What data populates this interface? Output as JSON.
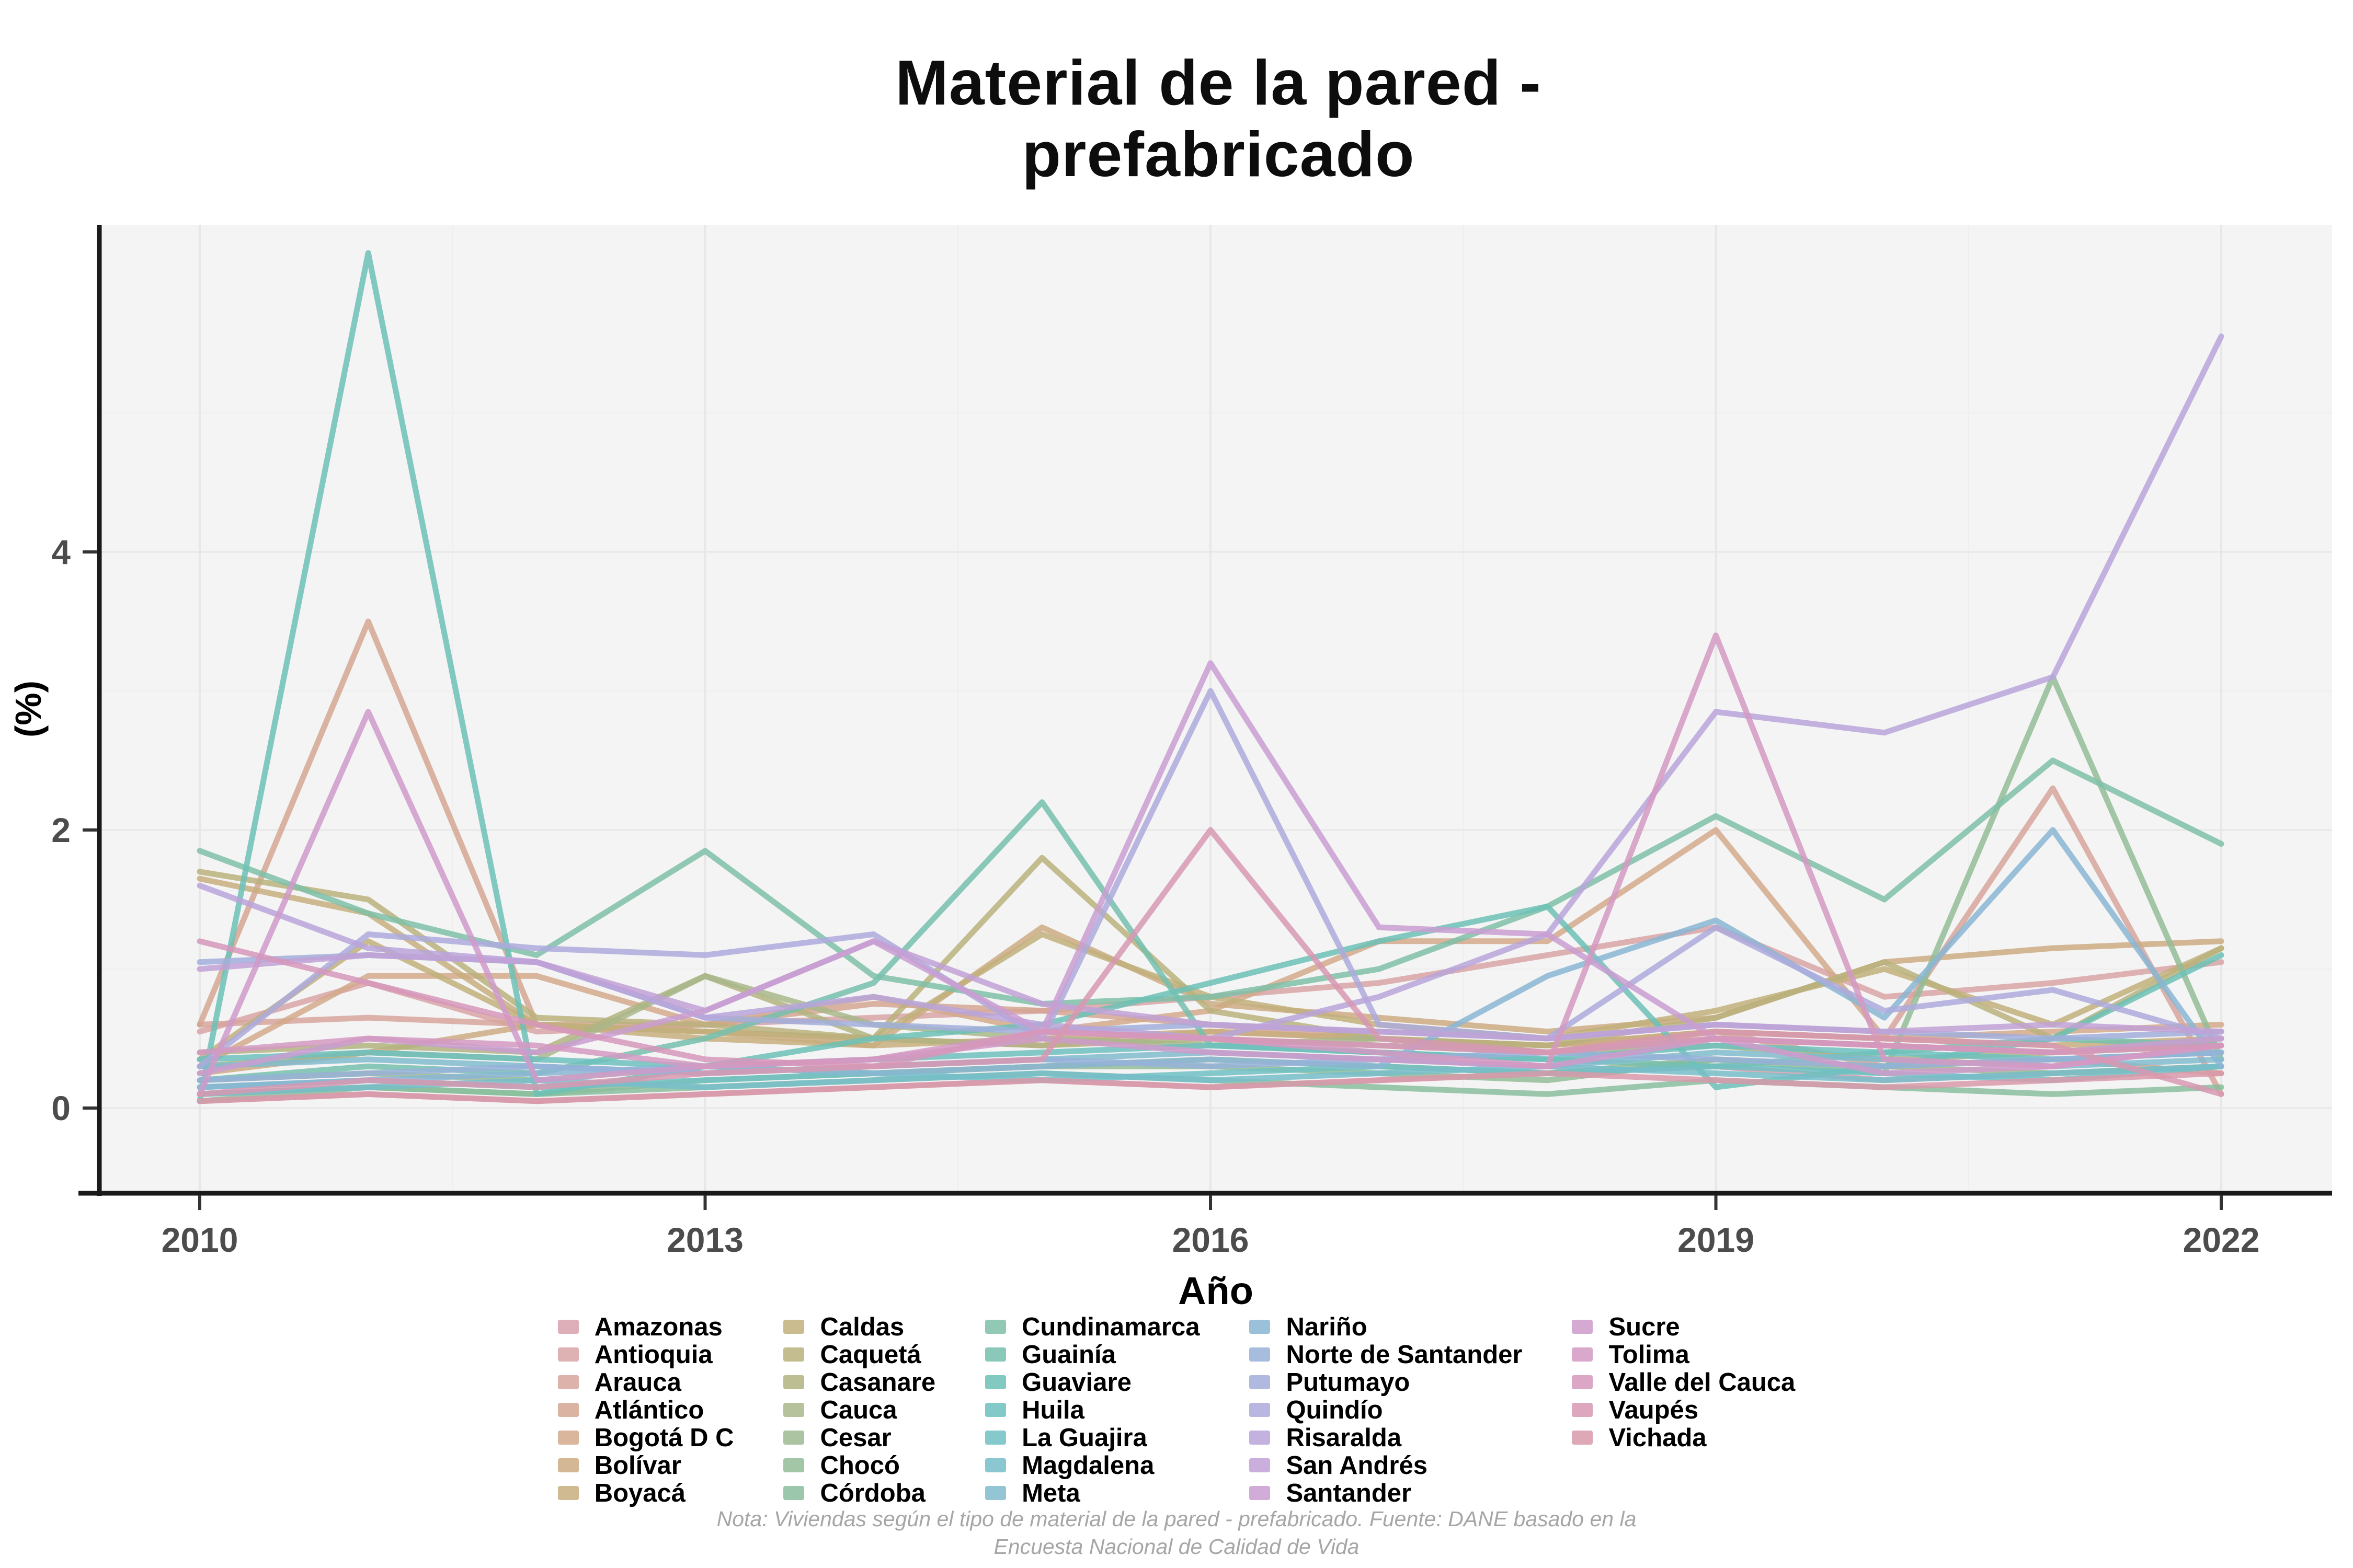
{
  "title": {
    "line1": "Material de la pared -",
    "line2": "prefabricado"
  },
  "axes": {
    "x_label": "Año",
    "y_label": "(%)",
    "x_ticks": [
      2010,
      2013,
      2016,
      2019,
      2022
    ],
    "y_ticks": [
      0,
      2,
      4
    ]
  },
  "note": {
    "line1": "Nota: Viviendas según el tipo de material de la pared - prefabricado. Fuente: DANE basado en la",
    "line2": "Encuesta Nacional de Calidad de Vida"
  },
  "style_colors": {
    "panel_background": "#f4f4f4",
    "grid_major": "#e7e7e7",
    "grid_minor": "#eeeeee",
    "axis_line": "#1a1a1a",
    "tick_label": "#4c4c4c"
  },
  "chart_data": {
    "type": "line",
    "title": "Material de la pared - prefabricado",
    "xlabel": "Año",
    "ylabel": "(%)",
    "x": [
      2010,
      2011,
      2012,
      2013,
      2014,
      2015,
      2016,
      2017,
      2018,
      2019,
      2020,
      2021,
      2022
    ],
    "xlim": [
      2010,
      2022
    ],
    "ylim": [
      0,
      6.2
    ],
    "grid": true,
    "legend_position": "bottom",
    "series": [
      {
        "name": "Amazonas",
        "color": "#d8a0ad",
        "values": [
          0.05,
          0.1,
          0.05,
          0.1,
          0.15,
          0.2,
          0.15,
          0.2,
          0.25,
          0.3,
          0.2,
          0.25,
          0.3
        ]
      },
      {
        "name": "Antioquia",
        "color": "#d8a3a4",
        "values": [
          0.55,
          0.9,
          0.55,
          0.6,
          0.65,
          0.7,
          0.8,
          0.9,
          1.1,
          1.3,
          0.8,
          0.9,
          1.05
        ]
      },
      {
        "name": "Arauca",
        "color": "#d6a49c",
        "values": [
          0.6,
          0.65,
          0.6,
          0.55,
          0.5,
          0.45,
          0.55,
          0.5,
          0.45,
          0.55,
          0.5,
          2.3,
          0.1
        ]
      },
      {
        "name": "Atlántico",
        "color": "#d5a693",
        "values": [
          0.6,
          3.5,
          0.6,
          0.6,
          0.75,
          0.7,
          0.6,
          0.5,
          0.4,
          0.55,
          0.3,
          0.35,
          0.25
        ]
      },
      {
        "name": "Bogotá D C",
        "color": "#d2a98b",
        "values": [
          0.3,
          0.95,
          0.95,
          0.6,
          0.8,
          0.55,
          0.7,
          1.2,
          1.2,
          2.0,
          0.5,
          0.55,
          0.6
        ]
      },
      {
        "name": "Bolívar",
        "color": "#cdab83",
        "values": [
          0.25,
          0.4,
          0.6,
          0.55,
          0.45,
          1.3,
          0.75,
          0.65,
          0.55,
          0.65,
          1.05,
          1.15,
          1.2
        ]
      },
      {
        "name": "Boyacá",
        "color": "#c8ae7e",
        "values": [
          1.65,
          1.4,
          0.6,
          0.5,
          0.45,
          0.5,
          0.55,
          0.5,
          0.45,
          0.55,
          0.5,
          0.45,
          0.5
        ]
      },
      {
        "name": "Caldas",
        "color": "#c1b07b",
        "values": [
          0.35,
          1.2,
          0.6,
          0.55,
          0.5,
          1.25,
          0.8,
          0.6,
          0.5,
          0.7,
          1.0,
          0.6,
          1.15
        ]
      },
      {
        "name": "Caquetá",
        "color": "#bab27d",
        "values": [
          1.7,
          1.5,
          0.65,
          0.6,
          0.5,
          1.8,
          0.7,
          0.5,
          0.45,
          0.65,
          1.05,
          0.5,
          1.15
        ]
      },
      {
        "name": "Casanare",
        "color": "#b1b480",
        "values": [
          0.4,
          0.45,
          0.4,
          0.95,
          0.5,
          0.45,
          0.5,
          0.45,
          0.4,
          0.5,
          0.45,
          0.4,
          0.45
        ]
      },
      {
        "name": "Cauca",
        "color": "#a8b789",
        "values": [
          0.3,
          0.4,
          0.35,
          0.95,
          0.6,
          0.5,
          0.45,
          0.5,
          0.4,
          0.45,
          0.35,
          0.4,
          0.5
        ]
      },
      {
        "name": "Cesar",
        "color": "#9dba90",
        "values": [
          0.2,
          0.25,
          0.2,
          0.3,
          0.25,
          0.3,
          0.35,
          0.3,
          0.25,
          0.35,
          0.3,
          0.25,
          0.3
        ]
      },
      {
        "name": "Chocó",
        "color": "#93bc96",
        "values": [
          0.05,
          0.15,
          0.1,
          0.2,
          0.25,
          0.3,
          0.3,
          0.25,
          0.2,
          0.35,
          0.25,
          3.1,
          0.35
        ]
      },
      {
        "name": "Córdoba",
        "color": "#89be9e",
        "values": [
          0.1,
          0.15,
          0.1,
          0.15,
          0.2,
          0.25,
          0.2,
          0.15,
          0.1,
          0.2,
          0.15,
          0.1,
          0.15
        ]
      },
      {
        "name": "Cundinamarca",
        "color": "#7fbfa7",
        "values": [
          1.85,
          1.4,
          1.1,
          1.85,
          0.95,
          0.75,
          0.8,
          1.0,
          1.45,
          2.1,
          1.5,
          2.5,
          1.9
        ]
      },
      {
        "name": "Guainía",
        "color": "#76c0ae",
        "values": [
          0.2,
          0.3,
          0.25,
          0.5,
          0.9,
          2.2,
          0.45,
          0.4,
          0.35,
          0.3,
          0.4,
          0.5,
          0.45
        ]
      },
      {
        "name": "Guaviare",
        "color": "#6cc1b6",
        "values": [
          0.05,
          6.15,
          0.1,
          0.3,
          0.5,
          0.6,
          0.9,
          1.2,
          1.45,
          0.15,
          0.3,
          0.5,
          1.1
        ]
      },
      {
        "name": "Huila",
        "color": "#6dc0bd",
        "values": [
          0.35,
          0.4,
          0.35,
          0.3,
          0.35,
          0.4,
          0.45,
          0.4,
          0.35,
          0.45,
          0.4,
          0.35,
          0.4
        ]
      },
      {
        "name": "La Guajira",
        "color": "#70bfc3",
        "values": [
          0.15,
          0.2,
          0.15,
          0.2,
          0.25,
          0.2,
          0.25,
          0.3,
          0.25,
          0.3,
          0.25,
          0.2,
          0.3
        ]
      },
      {
        "name": "Magdalena",
        "color": "#77bdc9",
        "values": [
          0.1,
          0.15,
          0.2,
          0.15,
          0.2,
          0.25,
          0.2,
          0.25,
          0.3,
          0.25,
          0.2,
          0.25,
          0.3
        ]
      },
      {
        "name": "Meta",
        "color": "#80bbce",
        "values": [
          0.3,
          0.35,
          0.3,
          0.25,
          0.3,
          0.35,
          0.4,
          0.35,
          0.3,
          0.4,
          0.35,
          0.3,
          0.35
        ]
      },
      {
        "name": "Nariño",
        "color": "#8ab6d3",
        "values": [
          0.15,
          0.2,
          0.25,
          0.3,
          0.25,
          0.3,
          0.35,
          0.3,
          0.95,
          1.35,
          0.65,
          2.0,
          0.3
        ]
      },
      {
        "name": "Norte de Santander",
        "color": "#96b2d8",
        "values": [
          0.2,
          0.25,
          0.3,
          0.25,
          0.3,
          0.35,
          0.3,
          0.35,
          0.4,
          0.35,
          0.3,
          0.35,
          0.4
        ]
      },
      {
        "name": "Putumayo",
        "color": "#a2aedb",
        "values": [
          1.05,
          1.1,
          1.05,
          0.65,
          0.6,
          0.55,
          0.6,
          0.55,
          0.5,
          0.6,
          0.55,
          0.5,
          0.55
        ]
      },
      {
        "name": "Quindío",
        "color": "#adaadc",
        "values": [
          0.3,
          1.25,
          1.15,
          1.1,
          1.25,
          0.5,
          3.0,
          0.6,
          0.5,
          1.3,
          0.7,
          0.85,
          0.5
        ]
      },
      {
        "name": "Risaralda",
        "color": "#b8a5da",
        "values": [
          1.6,
          1.15,
          1.05,
          0.65,
          0.8,
          0.6,
          0.5,
          0.8,
          1.25,
          2.85,
          2.7,
          3.1,
          5.55
        ]
      },
      {
        "name": "San Andrés",
        "color": "#c1a1d6",
        "values": [
          1.0,
          1.1,
          1.05,
          0.7,
          1.2,
          0.75,
          0.6,
          0.55,
          0.5,
          0.6,
          0.55,
          0.6,
          0.55
        ]
      },
      {
        "name": "Santander",
        "color": "#c99dd1",
        "values": [
          0.25,
          0.5,
          0.4,
          0.7,
          1.2,
          0.55,
          3.2,
          1.3,
          1.25,
          0.5,
          0.45,
          0.4,
          0.5
        ]
      },
      {
        "name": "Sucre",
        "color": "#cf9aca",
        "values": [
          0.1,
          2.85,
          0.2,
          0.3,
          0.35,
          0.5,
          0.4,
          0.35,
          0.3,
          0.5,
          0.25,
          0.3,
          0.45
        ]
      },
      {
        "name": "Tolima",
        "color": "#d399c2",
        "values": [
          0.4,
          0.5,
          0.45,
          0.3,
          0.35,
          0.55,
          0.5,
          0.4,
          0.3,
          3.4,
          0.35,
          0.3,
          0.45
        ]
      },
      {
        "name": "Valle del Cauca",
        "color": "#d697bb",
        "values": [
          1.2,
          0.9,
          0.6,
          0.35,
          0.3,
          0.55,
          0.5,
          0.45,
          0.4,
          0.5,
          0.45,
          0.4,
          0.45
        ]
      },
      {
        "name": "Vaupés",
        "color": "#d798b2",
        "values": [
          0.1,
          0.2,
          0.15,
          0.25,
          0.3,
          0.35,
          2.0,
          0.5,
          0.4,
          0.55,
          0.5,
          0.45,
          0.1
        ]
      },
      {
        "name": "Vichada",
        "color": "#d899aa",
        "values": [
          0.05,
          0.1,
          0.05,
          0.1,
          0.15,
          0.2,
          0.15,
          0.2,
          0.25,
          0.2,
          0.15,
          0.2,
          0.25
        ]
      }
    ]
  }
}
